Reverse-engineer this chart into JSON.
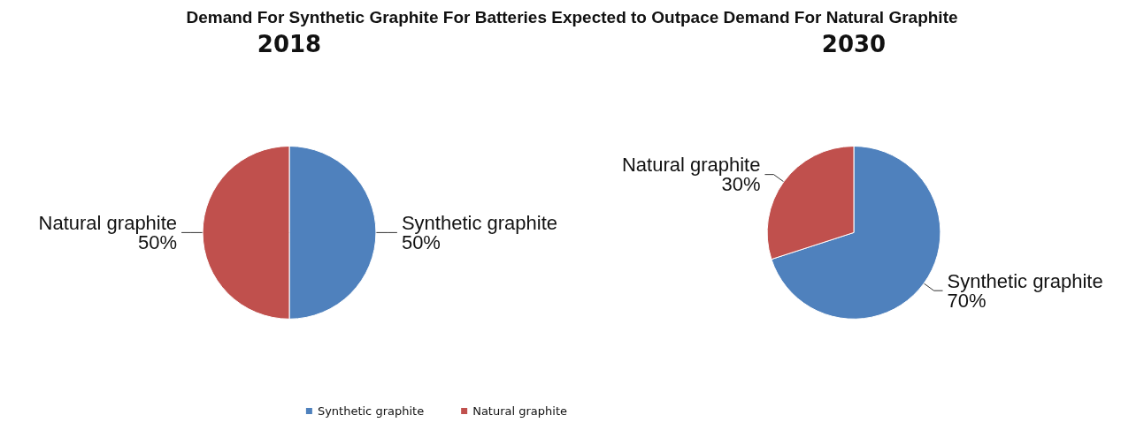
{
  "chart_data": [
    {
      "type": "pie",
      "title": "2018",
      "annotations": [
        "Demand For Synthetic Graphite For Batteries Expected to Outpace Demand For Natural Graphite"
      ],
      "categories": [
        "Synthetic graphite",
        "Natural graphite"
      ],
      "values": [
        50,
        50
      ],
      "value_labels": [
        "50%",
        "50%"
      ],
      "colors": [
        "#4f81bd",
        "#c0504d"
      ],
      "legend": "bottom right"
    },
    {
      "type": "pie",
      "title": "2030",
      "categories": [
        "Synthetic graphite",
        "Natural graphite"
      ],
      "values": [
        70,
        30
      ],
      "value_labels": [
        "70%",
        "30%"
      ],
      "colors": [
        "#4f81bd",
        "#c0504d"
      ]
    }
  ]
}
